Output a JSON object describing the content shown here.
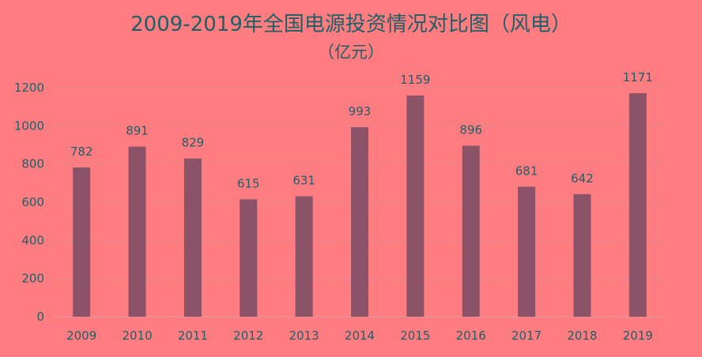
{
  "chart_data": {
    "type": "bar",
    "title": "2009-2019年全国电源投资情况对比图（风电）",
    "subtitle": "（亿元）",
    "categories": [
      "2009",
      "2010",
      "2011",
      "2012",
      "2013",
      "2014",
      "2015",
      "2016",
      "2017",
      "2018",
      "2019"
    ],
    "values": [
      782,
      891,
      829,
      615,
      631,
      993,
      1159,
      896,
      681,
      642,
      1171
    ],
    "ylim": [
      0,
      1200
    ],
    "yticks": [
      0,
      200,
      400,
      600,
      800,
      1000,
      1200
    ],
    "grid": true,
    "legend": "none",
    "colors": {
      "background": "#ff7c80",
      "bar": "#8b5268",
      "gridline": "#e58a8c",
      "text": "#1f5f66"
    }
  }
}
